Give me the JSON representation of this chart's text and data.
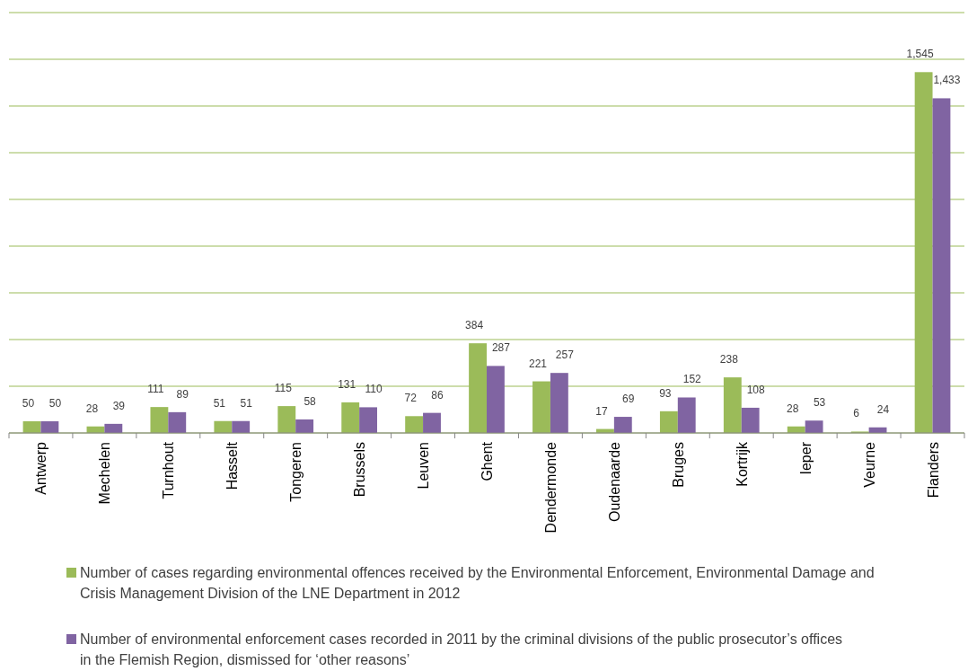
{
  "chart_data": {
    "type": "bar",
    "categories": [
      "Antwerp",
      "Mechelen",
      "Turnhout",
      "Hasselt",
      "Tongeren",
      "Brussels",
      "Leuven",
      "Ghent",
      "Dendermonde",
      "Oudenaarde",
      "Bruges",
      "Kortrijk",
      "Ieper",
      "Veurne",
      "Flanders"
    ],
    "series": [
      {
        "name": "Number of cases regarding environmental offences received by the Environmental Enforcement, Environmental Damage and Crisis Management Division of the LNE Department in 2012",
        "color": "#9bbb59",
        "values": [
          50,
          28,
          111,
          51,
          115,
          131,
          72,
          384,
          221,
          17,
          93,
          238,
          28,
          6,
          1545
        ],
        "value_labels": [
          "50",
          "28",
          "111",
          "51",
          "115",
          "131",
          "72",
          "384",
          "221",
          "17",
          "93",
          "238",
          "28",
          "6",
          "1,545"
        ]
      },
      {
        "name": "Number of environmental enforcement cases recorded in 2011 by the criminal divisions of the public prosecutor’s offices in the Flemish Region, dismissed for ‘other reasons’",
        "color": "#8064a2",
        "values": [
          50,
          39,
          89,
          51,
          58,
          110,
          86,
          287,
          257,
          69,
          152,
          108,
          53,
          24,
          1433
        ],
        "value_labels": [
          "50",
          "39",
          "89",
          "51",
          "58",
          "110",
          "86",
          "287",
          "257",
          "69",
          "152",
          "108",
          "53",
          "24",
          "1,433"
        ]
      }
    ],
    "ylim": [
      0,
      1800
    ],
    "yticks": [
      {
        "value": 0,
        "label": null
      },
      {
        "value": 200,
        "label": null
      },
      {
        "value": 400,
        "label": null
      },
      {
        "value": 600,
        "label": null
      },
      {
        "value": 800,
        "label": null
      },
      {
        "value": 1000,
        "label": null
      },
      {
        "value": 1200,
        "label": null
      },
      {
        "value": 1400,
        "label": null
      },
      {
        "value": 1600,
        "label": null
      },
      {
        "value": 1800,
        "label": null
      }
    ],
    "grid": "y",
    "legend": "bottom"
  }
}
